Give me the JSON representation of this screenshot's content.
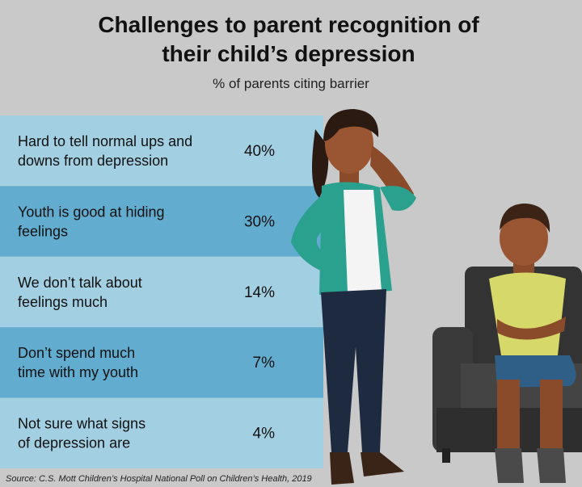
{
  "header": {
    "title_lines": [
      "Challenges to parent recognition of",
      "their child’s depression"
    ],
    "subtitle": "% of parents citing barrier"
  },
  "rows": [
    {
      "label_lines": [
        "Hard to tell normal ups and",
        "downs from depression"
      ],
      "value": "40%"
    },
    {
      "label_lines": [
        "Youth is good at hiding",
        "feelings"
      ],
      "value": "30%"
    },
    {
      "label_lines": [
        "We don’t talk about",
        "feelings much"
      ],
      "value": "14%"
    },
    {
      "label_lines": [
        "Don’t spend much",
        "time with my youth"
      ],
      "value": "7%"
    },
    {
      "label_lines": [
        "Not sure what signs",
        "of depression are"
      ],
      "value": "4%"
    }
  ],
  "footer": {
    "source": "Source: C.S. Mott Children’s Hospital National Poll on Children’s Health, 2019"
  }
}
